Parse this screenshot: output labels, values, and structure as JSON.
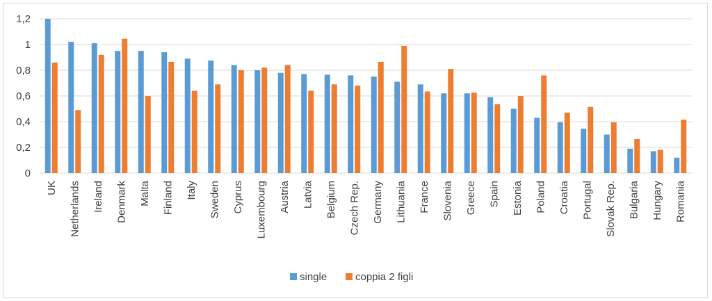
{
  "chart_data": {
    "type": "bar",
    "title": "",
    "xlabel": "",
    "ylabel": "",
    "ylim": [
      0,
      1.2
    ],
    "yticks": [
      "0",
      "0,2",
      "0,4",
      "0,6",
      "0,8",
      "1",
      "1,2"
    ],
    "grid": true,
    "legend_position": "bottom",
    "categories": [
      "UK",
      "Netherlands",
      "Ireland",
      "Denmark",
      "Malta",
      "Finland",
      "Italy",
      "Sweden",
      "Cyprus",
      "Luxembourg",
      "Austria",
      "Latvia",
      "Belgium",
      "Czech Rep.",
      "Germany",
      "Lithuania",
      "France",
      "Slovenia",
      "Greece",
      "Spain",
      "Estonia",
      "Poland",
      "Croatia",
      "Portugal",
      "Slovak Rep.",
      "Bulgaria",
      "Hungary",
      "Romania"
    ],
    "series": [
      {
        "name": "single",
        "color": "#5b9bd5",
        "values": [
          1.2,
          1.02,
          1.01,
          0.95,
          0.95,
          0.94,
          0.89,
          0.875,
          0.84,
          0.8,
          0.78,
          0.77,
          0.765,
          0.76,
          0.75,
          0.71,
          0.69,
          0.62,
          0.62,
          0.59,
          0.5,
          0.43,
          0.395,
          0.345,
          0.3,
          0.19,
          0.17,
          0.12
        ]
      },
      {
        "name": "coppia 2 figli",
        "color": "#ed7d31",
        "values": [
          0.86,
          0.49,
          0.92,
          1.045,
          0.6,
          0.865,
          0.64,
          0.69,
          0.8,
          0.82,
          0.84,
          0.64,
          0.69,
          0.68,
          0.865,
          0.99,
          0.635,
          0.81,
          0.625,
          0.535,
          0.6,
          0.76,
          0.47,
          0.515,
          0.395,
          0.265,
          0.18,
          0.415
        ]
      }
    ]
  }
}
